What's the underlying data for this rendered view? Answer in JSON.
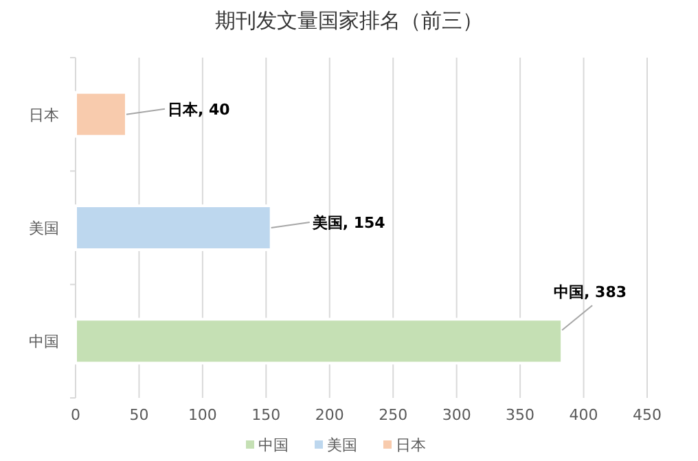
{
  "chart_data": {
    "type": "bar",
    "orientation": "horizontal",
    "stacked": true,
    "title": "期刊发文量国家排名（前三）",
    "categories": [
      "日本",
      "美国",
      "中国"
    ],
    "series": [
      {
        "name": "中国",
        "color": "#c5e0b4",
        "values": [
          null,
          null,
          383
        ],
        "value_labels": [
          null,
          null,
          "中国, 383"
        ]
      },
      {
        "name": "美国",
        "color": "#bdd7ee",
        "values": [
          null,
          154,
          null
        ],
        "value_labels": [
          null,
          "美国, 154",
          null
        ]
      },
      {
        "name": "日本",
        "color": "#f8cbad",
        "values": [
          40,
          null,
          null
        ],
        "value_labels": [
          "日本, 40",
          null,
          null
        ]
      }
    ],
    "xlim": [
      0,
      450
    ],
    "xticks": [
      0,
      50,
      100,
      150,
      200,
      250,
      300,
      350,
      400,
      450
    ],
    "grid": "x",
    "legend": "bottom"
  }
}
